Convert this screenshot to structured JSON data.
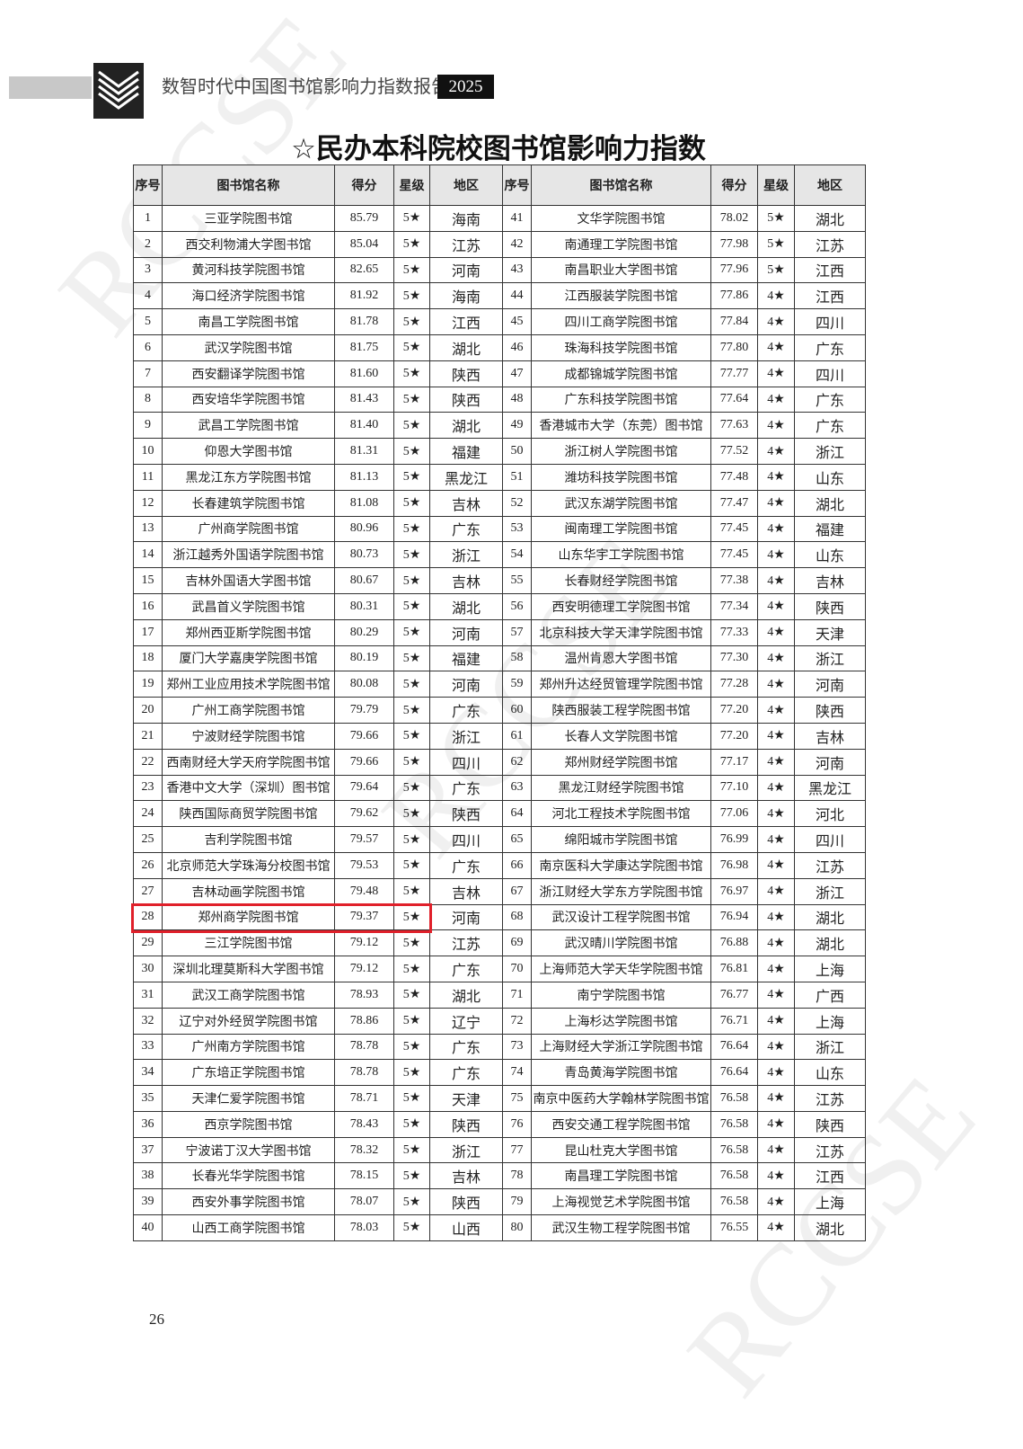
{
  "header": {
    "title": "数智时代中国图书馆影响力指数报告",
    "year": "2025"
  },
  "watermark": "RCCSE",
  "title": "☆民办本科院校图书馆影响力指数",
  "table": {
    "headers": [
      "序号",
      "图书馆名称",
      "得分",
      "星级",
      "地区",
      "序号",
      "图书馆名称",
      "得分",
      "星级",
      "地区"
    ],
    "rows": [
      [
        "1",
        "三亚学院图书馆",
        "85.79",
        "5★",
        "海南",
        "41",
        "文华学院图书馆",
        "78.02",
        "5★",
        "湖北"
      ],
      [
        "2",
        "西交利物浦大学图书馆",
        "85.04",
        "5★",
        "江苏",
        "42",
        "南通理工学院图书馆",
        "77.98",
        "5★",
        "江苏"
      ],
      [
        "3",
        "黄河科技学院图书馆",
        "82.65",
        "5★",
        "河南",
        "43",
        "南昌职业大学图书馆",
        "77.96",
        "5★",
        "江西"
      ],
      [
        "4",
        "海口经济学院图书馆",
        "81.92",
        "5★",
        "海南",
        "44",
        "江西服装学院图书馆",
        "77.86",
        "4★",
        "江西"
      ],
      [
        "5",
        "南昌工学院图书馆",
        "81.78",
        "5★",
        "江西",
        "45",
        "四川工商学院图书馆",
        "77.84",
        "4★",
        "四川"
      ],
      [
        "6",
        "武汉学院图书馆",
        "81.75",
        "5★",
        "湖北",
        "46",
        "珠海科技学院图书馆",
        "77.80",
        "4★",
        "广东"
      ],
      [
        "7",
        "西安翻译学院图书馆",
        "81.60",
        "5★",
        "陕西",
        "47",
        "成都锦城学院图书馆",
        "77.77",
        "4★",
        "四川"
      ],
      [
        "8",
        "西安培华学院图书馆",
        "81.43",
        "5★",
        "陕西",
        "48",
        "广东科技学院图书馆",
        "77.64",
        "4★",
        "广东"
      ],
      [
        "9",
        "武昌工学院图书馆",
        "81.40",
        "5★",
        "湖北",
        "49",
        "香港城市大学（东莞）图书馆",
        "77.63",
        "4★",
        "广东"
      ],
      [
        "10",
        "仰恩大学图书馆",
        "81.31",
        "5★",
        "福建",
        "50",
        "浙江树人学院图书馆",
        "77.52",
        "4★",
        "浙江"
      ],
      [
        "11",
        "黑龙江东方学院图书馆",
        "81.13",
        "5★",
        "黑龙江",
        "51",
        "潍坊科技学院图书馆",
        "77.48",
        "4★",
        "山东"
      ],
      [
        "12",
        "长春建筑学院图书馆",
        "81.08",
        "5★",
        "吉林",
        "52",
        "武汉东湖学院图书馆",
        "77.47",
        "4★",
        "湖北"
      ],
      [
        "13",
        "广州商学院图书馆",
        "80.96",
        "5★",
        "广东",
        "53",
        "闽南理工学院图书馆",
        "77.45",
        "4★",
        "福建"
      ],
      [
        "14",
        "浙江越秀外国语学院图书馆",
        "80.73",
        "5★",
        "浙江",
        "54",
        "山东华宇工学院图书馆",
        "77.45",
        "4★",
        "山东"
      ],
      [
        "15",
        "吉林外国语大学图书馆",
        "80.67",
        "5★",
        "吉林",
        "55",
        "长春财经学院图书馆",
        "77.38",
        "4★",
        "吉林"
      ],
      [
        "16",
        "武昌首义学院图书馆",
        "80.31",
        "5★",
        "湖北",
        "56",
        "西安明德理工学院图书馆",
        "77.34",
        "4★",
        "陕西"
      ],
      [
        "17",
        "郑州西亚斯学院图书馆",
        "80.29",
        "5★",
        "河南",
        "57",
        "北京科技大学天津学院图书馆",
        "77.33",
        "4★",
        "天津"
      ],
      [
        "18",
        "厦门大学嘉庚学院图书馆",
        "80.19",
        "5★",
        "福建",
        "58",
        "温州肯恩大学图书馆",
        "77.30",
        "4★",
        "浙江"
      ],
      [
        "19",
        "郑州工业应用技术学院图书馆",
        "80.08",
        "5★",
        "河南",
        "59",
        "郑州升达经贸管理学院图书馆",
        "77.28",
        "4★",
        "河南"
      ],
      [
        "20",
        "广州工商学院图书馆",
        "79.79",
        "5★",
        "广东",
        "60",
        "陕西服装工程学院图书馆",
        "77.20",
        "4★",
        "陕西"
      ],
      [
        "21",
        "宁波财经学院图书馆",
        "79.66",
        "5★",
        "浙江",
        "61",
        "长春人文学院图书馆",
        "77.20",
        "4★",
        "吉林"
      ],
      [
        "22",
        "西南财经大学天府学院图书馆",
        "79.66",
        "5★",
        "四川",
        "62",
        "郑州财经学院图书馆",
        "77.17",
        "4★",
        "河南"
      ],
      [
        "23",
        "香港中文大学（深圳）图书馆",
        "79.64",
        "5★",
        "广东",
        "63",
        "黑龙江财经学院图书馆",
        "77.10",
        "4★",
        "黑龙江"
      ],
      [
        "24",
        "陕西国际商贸学院图书馆",
        "79.62",
        "5★",
        "陕西",
        "64",
        "河北工程技术学院图书馆",
        "77.06",
        "4★",
        "河北"
      ],
      [
        "25",
        "吉利学院图书馆",
        "79.57",
        "5★",
        "四川",
        "65",
        "绵阳城市学院图书馆",
        "76.99",
        "4★",
        "四川"
      ],
      [
        "26",
        "北京师范大学珠海分校图书馆",
        "79.53",
        "5★",
        "广东",
        "66",
        "南京医科大学康达学院图书馆",
        "76.98",
        "4★",
        "江苏"
      ],
      [
        "27",
        "吉林动画学院图书馆",
        "79.48",
        "5★",
        "吉林",
        "67",
        "浙江财经大学东方学院图书馆",
        "76.97",
        "4★",
        "浙江"
      ],
      [
        "28",
        "郑州商学院图书馆",
        "79.37",
        "5★",
        "河南",
        "68",
        "武汉设计工程学院图书馆",
        "76.94",
        "4★",
        "湖北"
      ],
      [
        "29",
        "三江学院图书馆",
        "79.12",
        "5★",
        "江苏",
        "69",
        "武汉晴川学院图书馆",
        "76.88",
        "4★",
        "湖北"
      ],
      [
        "30",
        "深圳北理莫斯科大学图书馆",
        "79.12",
        "5★",
        "广东",
        "70",
        "上海师范大学天华学院图书馆",
        "76.81",
        "4★",
        "上海"
      ],
      [
        "31",
        "武汉工商学院图书馆",
        "78.93",
        "5★",
        "湖北",
        "71",
        "南宁学院图书馆",
        "76.77",
        "4★",
        "广西"
      ],
      [
        "32",
        "辽宁对外经贸学院图书馆",
        "78.86",
        "5★",
        "辽宁",
        "72",
        "上海杉达学院图书馆",
        "76.71",
        "4★",
        "上海"
      ],
      [
        "33",
        "广州南方学院图书馆",
        "78.78",
        "5★",
        "广东",
        "73",
        "上海财经大学浙江学院图书馆",
        "76.64",
        "4★",
        "浙江"
      ],
      [
        "34",
        "广东培正学院图书馆",
        "78.78",
        "5★",
        "广东",
        "74",
        "青岛黄海学院图书馆",
        "76.64",
        "4★",
        "山东"
      ],
      [
        "35",
        "天津仁爱学院图书馆",
        "78.71",
        "5★",
        "天津",
        "75",
        "南京中医药大学翰林学院图书馆",
        "76.58",
        "4★",
        "江苏"
      ],
      [
        "36",
        "西京学院图书馆",
        "78.43",
        "5★",
        "陕西",
        "76",
        "西安交通工程学院图书馆",
        "76.58",
        "4★",
        "陕西"
      ],
      [
        "37",
        "宁波诺丁汉大学图书馆",
        "78.32",
        "5★",
        "浙江",
        "77",
        "昆山杜克大学图书馆",
        "76.58",
        "4★",
        "江苏"
      ],
      [
        "38",
        "长春光华学院图书馆",
        "78.15",
        "5★",
        "吉林",
        "78",
        "南昌理工学院图书馆",
        "76.58",
        "4★",
        "江西"
      ],
      [
        "39",
        "西安外事学院图书馆",
        "78.07",
        "5★",
        "陕西",
        "79",
        "上海视觉艺术学院图书馆",
        "76.58",
        "4★",
        "上海"
      ],
      [
        "40",
        "山西工商学院图书馆",
        "78.03",
        "5★",
        "山西",
        "80",
        "武汉生物工程学院图书馆",
        "76.55",
        "4★",
        "湖北"
      ]
    ]
  },
  "page_number": "26"
}
